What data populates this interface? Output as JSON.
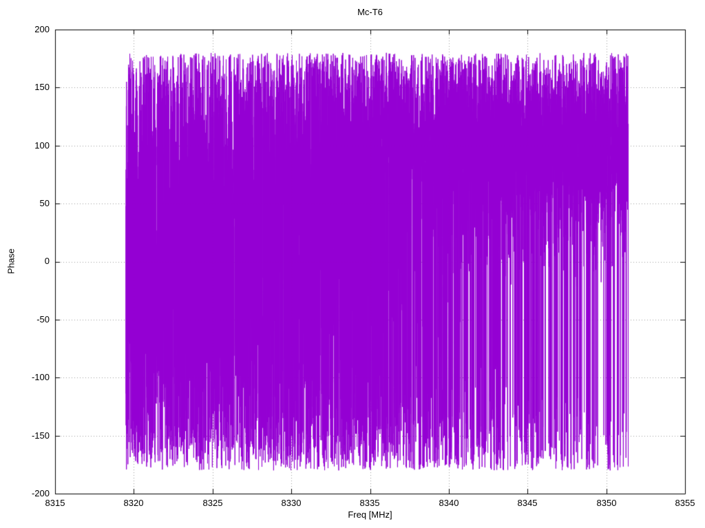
{
  "chart_data": {
    "type": "line",
    "title": "Mc-T6",
    "xlabel": "Freq [MHz]",
    "ylabel": "Phase",
    "xlim": [
      8315,
      8355
    ],
    "ylim": [
      -200,
      200
    ],
    "xticks": [
      8315,
      8320,
      8325,
      8330,
      8335,
      8340,
      8345,
      8350,
      8355
    ],
    "yticks": [
      -200,
      -150,
      -100,
      -50,
      0,
      50,
      100,
      150,
      200
    ],
    "xtick_labels": [
      "8315",
      "8320",
      "8325",
      "8330",
      "8335",
      "8340",
      "8345",
      "8350",
      "8355"
    ],
    "ytick_labels_top_to_bottom": [
      "200",
      "150",
      "100",
      "50",
      "0",
      "-50",
      "-100",
      "-150",
      "-200"
    ],
    "grid": true,
    "legend_position": "none",
    "series": [
      {
        "name": "Mc-T6 phase",
        "style": "lines",
        "color": "#9400d3",
        "x_start": 8319.5,
        "x_end": 8351.4,
        "y_wrap_range": [
          -180,
          180
        ],
        "description": "Densely wrapped interferometric phase noise drawn with connected lines; near-solid coverage from -180 to +180 deg on the left (8319.5-8328 MHz), gradually concentrating into a band roughly 60..180 deg toward 8351 MHz with frequent wrap spikes down to -180 deg.",
        "synthesis": {
          "seed": 1234,
          "points": 9000,
          "mean_start": 150,
          "mean_end": 105,
          "sigma_base": 45,
          "sigma_amp": 110,
          "sigma_pow": 1.8
        }
      }
    ]
  },
  "layout_colors": {
    "background": "#ffffff",
    "axis": "#000000",
    "grid": "#9a9a9a",
    "text": "#000000",
    "series": "#9400d3"
  }
}
